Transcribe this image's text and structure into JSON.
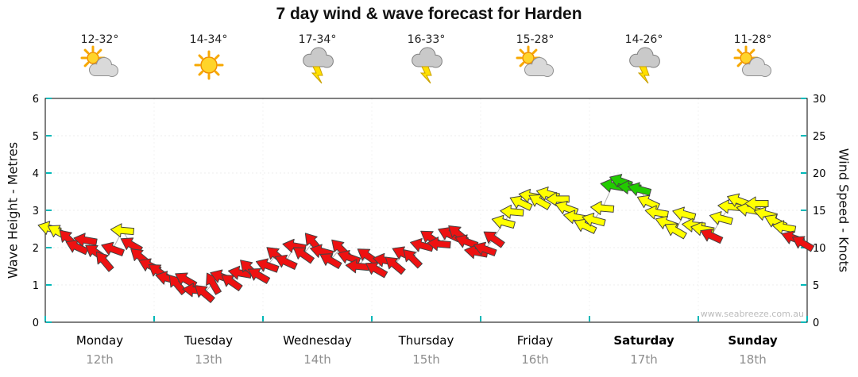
{
  "title": "7 day wind & wave forecast for Harden",
  "watermark": "www.seabreeze.com.au",
  "axes": {
    "left_label": "Wave Height - Metres",
    "right_label": "Wind Speed - Knots",
    "left_ticks": [
      0,
      1,
      2,
      3,
      4,
      5,
      6
    ],
    "right_ticks": [
      0,
      5,
      10,
      15,
      20,
      25,
      30
    ]
  },
  "days": [
    {
      "name": "Monday",
      "date": "12th",
      "temp": "12-32°",
      "icon": "sun-cloud",
      "bold": false
    },
    {
      "name": "Tuesday",
      "date": "13th",
      "temp": "14-34°",
      "icon": "sun",
      "bold": false
    },
    {
      "name": "Wednesday",
      "date": "14th",
      "temp": "17-34°",
      "icon": "storm",
      "bold": false
    },
    {
      "name": "Thursday",
      "date": "15th",
      "temp": "16-33°",
      "icon": "storm",
      "bold": false
    },
    {
      "name": "Friday",
      "date": "16th",
      "temp": "15-28°",
      "icon": "sun-cloud",
      "bold": false
    },
    {
      "name": "Saturday",
      "date": "17th",
      "temp": "14-26°",
      "icon": "storm",
      "bold": true
    },
    {
      "name": "Sunday",
      "date": "18th",
      "temp": "11-28°",
      "icon": "sun-cloud",
      "bold": true
    }
  ],
  "chart_data": {
    "type": "wind-arrows",
    "x_unit": "days",
    "x_range": [
      0,
      7
    ],
    "wave_axis_range": [
      0,
      6
    ],
    "wind_axis_range": [
      0,
      30
    ],
    "legend": "arrow colour encodes wind speed",
    "color_thresholds": {
      "red_below_knots": 12,
      "green_at_or_above_knots": 17.5
    },
    "colors": {
      "red": "#ee1111",
      "yellow": "#ffff00",
      "green": "#22cc00",
      "connector": "#b0b0b0"
    },
    "point_format": [
      "x_days",
      "knots",
      "direction_deg"
    ],
    "points": [
      [
        0.04,
        12.6,
        195
      ],
      [
        0.12,
        12.1,
        210
      ],
      [
        0.21,
        11.2,
        225
      ],
      [
        0.29,
        10.1,
        205
      ],
      [
        0.37,
        11,
        190
      ],
      [
        0.46,
        9.4,
        215
      ],
      [
        0.54,
        8.2,
        230
      ],
      [
        0.62,
        9.8,
        200
      ],
      [
        0.71,
        12.3,
        185
      ],
      [
        0.79,
        10.4,
        210
      ],
      [
        0.87,
        8.8,
        220
      ],
      [
        0.96,
        7.6,
        205
      ],
      [
        1.04,
        6.8,
        215
      ],
      [
        1.12,
        5.9,
        195
      ],
      [
        1.21,
        5.1,
        230
      ],
      [
        1.29,
        5.7,
        210
      ],
      [
        1.37,
        4.3,
        185
      ],
      [
        1.46,
        3.9,
        220
      ],
      [
        1.54,
        5.2,
        240
      ],
      [
        1.62,
        6.1,
        200
      ],
      [
        1.71,
        5.4,
        215
      ],
      [
        1.79,
        6.6,
        190
      ],
      [
        1.87,
        7.2,
        225
      ],
      [
        1.96,
        6.3,
        210
      ],
      [
        2.04,
        7.6,
        200
      ],
      [
        2.12,
        9,
        220
      ],
      [
        2.21,
        8.1,
        205
      ],
      [
        2.29,
        10.2,
        190
      ],
      [
        2.37,
        9.1,
        215
      ],
      [
        2.46,
        10.7,
        230
      ],
      [
        2.54,
        9.5,
        195
      ],
      [
        2.62,
        8.3,
        210
      ],
      [
        2.71,
        9.9,
        225
      ],
      [
        2.79,
        8.7,
        200
      ],
      [
        2.87,
        7.5,
        185
      ],
      [
        2.96,
        8.9,
        215
      ],
      [
        3.04,
        7.1,
        210
      ],
      [
        3.12,
        8.3,
        190
      ],
      [
        3.21,
        7.7,
        220
      ],
      [
        3.29,
        9.2,
        205
      ],
      [
        3.37,
        8.6,
        225
      ],
      [
        3.46,
        10.3,
        195
      ],
      [
        3.54,
        11.3,
        215
      ],
      [
        3.62,
        10.5,
        185
      ],
      [
        3.71,
        11.8,
        205
      ],
      [
        3.79,
        11.9,
        220
      ],
      [
        3.87,
        10.8,
        200
      ],
      [
        3.96,
        9.4,
        190
      ],
      [
        4.04,
        9.8,
        200
      ],
      [
        4.12,
        11.2,
        215
      ],
      [
        4.21,
        13.4,
        195
      ],
      [
        4.29,
        14.8,
        185
      ],
      [
        4.37,
        16,
        205
      ],
      [
        4.46,
        16.9,
        190
      ],
      [
        4.54,
        16.2,
        210
      ],
      [
        4.62,
        17.2,
        195
      ],
      [
        4.71,
        16.5,
        180
      ],
      [
        4.79,
        15.3,
        200
      ],
      [
        4.87,
        14.1,
        190
      ],
      [
        4.96,
        12.9,
        205
      ],
      [
        5.04,
        13.7,
        195
      ],
      [
        5.12,
        15.3,
        185
      ],
      [
        5.21,
        18.3,
        190
      ],
      [
        5.29,
        18.9,
        200
      ],
      [
        5.37,
        18.1,
        185
      ],
      [
        5.46,
        17.8,
        195
      ],
      [
        5.54,
        16.1,
        205
      ],
      [
        5.62,
        14.7,
        190
      ],
      [
        5.71,
        13.3,
        200
      ],
      [
        5.79,
        12.3,
        210
      ],
      [
        5.87,
        14.5,
        195
      ],
      [
        5.96,
        13,
        185
      ],
      [
        6.04,
        12.5,
        190
      ],
      [
        6.12,
        11.6,
        205
      ],
      [
        6.21,
        13.9,
        195
      ],
      [
        6.29,
        15.5,
        185
      ],
      [
        6.37,
        16.3,
        200
      ],
      [
        6.46,
        15.1,
        190
      ],
      [
        6.54,
        15.9,
        180
      ],
      [
        6.62,
        14.5,
        195
      ],
      [
        6.71,
        13.5,
        205
      ],
      [
        6.79,
        12.7,
        190
      ],
      [
        6.87,
        11.3,
        200
      ],
      [
        6.96,
        10.6,
        210
      ]
    ]
  }
}
